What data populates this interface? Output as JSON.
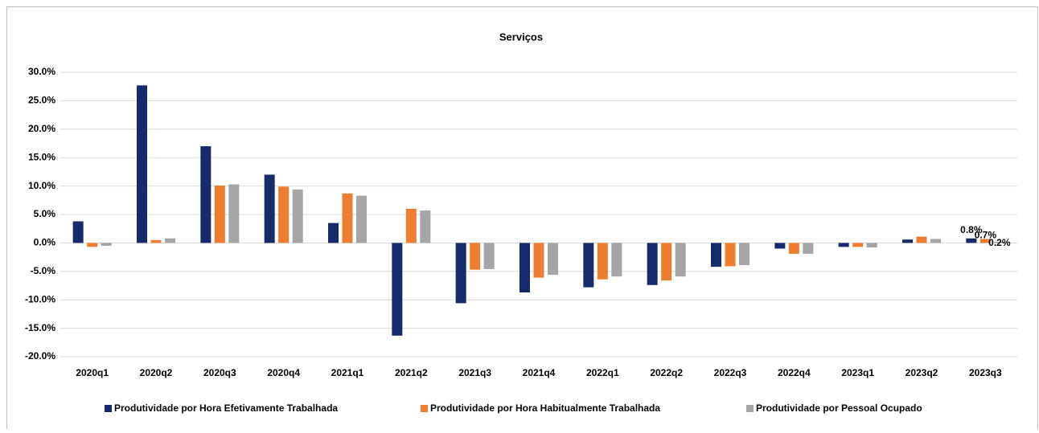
{
  "chart_data": {
    "type": "bar",
    "title": "Serviços",
    "categories": [
      "2020q1",
      "2020q2",
      "2020q3",
      "2020q4",
      "2021q1",
      "2021q2",
      "2021q3",
      "2021q4",
      "2022q1",
      "2022q2",
      "2022q3",
      "2022q4",
      "2023q1",
      "2023q2",
      "2023q3"
    ],
    "series": [
      {
        "name": "Produtividade por Hora Efetivamente Trabalhada",
        "color": "#172b6b",
        "values": [
          3.8,
          27.7,
          17.0,
          12.0,
          3.5,
          -16.3,
          -10.6,
          -8.7,
          -7.8,
          -7.4,
          -4.2,
          -1.0,
          -0.7,
          0.6,
          0.8
        ],
        "value_labels": [
          null,
          null,
          null,
          null,
          null,
          null,
          null,
          null,
          null,
          null,
          null,
          null,
          null,
          null,
          "0.8%"
        ]
      },
      {
        "name": "Produtividade por Hora Habitualmente Trabalhada",
        "color": "#ed7d31",
        "values": [
          -0.7,
          0.5,
          10.1,
          9.9,
          8.7,
          6.0,
          -4.7,
          -6.1,
          -6.4,
          -6.6,
          -4.1,
          -1.9,
          -0.7,
          1.1,
          0.7
        ],
        "value_labels": [
          null,
          null,
          null,
          null,
          null,
          null,
          null,
          null,
          null,
          null,
          null,
          null,
          null,
          null,
          "0.7%"
        ]
      },
      {
        "name": "Produtividade por Pessoal Ocupado",
        "color": "#a5a5a5",
        "values": [
          -0.5,
          0.8,
          10.3,
          9.4,
          8.3,
          5.7,
          -4.6,
          -5.6,
          -5.9,
          -5.9,
          -3.9,
          -1.9,
          -0.8,
          0.7,
          0.2
        ],
        "value_labels": [
          null,
          null,
          null,
          null,
          null,
          null,
          null,
          null,
          null,
          null,
          null,
          null,
          null,
          null,
          "0.2%"
        ]
      }
    ],
    "ylim": [
      -20,
      30
    ],
    "yticks": [
      {
        "value": -20,
        "label": "-20.0%"
      },
      {
        "value": -15,
        "label": "-15.0%"
      },
      {
        "value": -10,
        "label": "-10.0%"
      },
      {
        "value": -5,
        "label": "-5.0%"
      },
      {
        "value": 0,
        "label": "0.0%"
      },
      {
        "value": 5,
        "label": "5.0%"
      },
      {
        "value": 10,
        "label": "10.0%"
      },
      {
        "value": 15,
        "label": "15.0%"
      },
      {
        "value": 20,
        "label": "20.0%"
      },
      {
        "value": 25,
        "label": "25.0%"
      },
      {
        "value": 30,
        "label": "30.0%"
      }
    ],
    "grid": true,
    "legend": "bottom"
  }
}
